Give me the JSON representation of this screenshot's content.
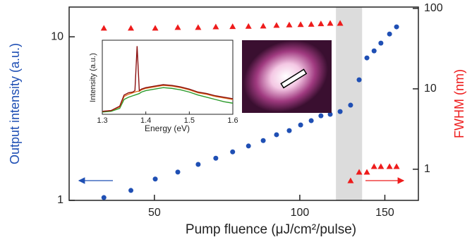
{
  "chart_data": [
    {
      "type": "scatter",
      "xlabel": "Pump fluence (μJ/cm²/pulse)",
      "ylabel": "Output intensity (a.u.)",
      "y2label": "FWHM (nm)",
      "xscale": "log",
      "yscale": "log",
      "y2scale": "log",
      "xlim": [
        33.3,
        176
      ],
      "ylim": [
        1,
        15.2
      ],
      "y2lim": [
        0.41,
        104
      ],
      "xticks": [
        50,
        100,
        150
      ],
      "yticks": [
        1,
        10
      ],
      "y2ticks": [
        1,
        10,
        100
      ],
      "shaded_region": [
        118.8,
        134.6
      ],
      "x": [
        39.3,
        44.7,
        50.2,
        55.9,
        61.6,
        67.0,
        72.6,
        78.3,
        84.0,
        89.5,
        95.1,
        100.4,
        105.6,
        110.6,
        115.6,
        121.2,
        127.4,
        132.7,
        137.7,
        142.5,
        147.2,
        153.4,
        158.6
      ],
      "series": [
        {
          "color": "#1f4fb4",
          "marker": "circle",
          "values": [
            1.04,
            1.15,
            1.35,
            1.49,
            1.66,
            1.81,
            1.98,
            2.15,
            2.32,
            2.52,
            2.67,
            2.89,
            3.07,
            3.29,
            3.36,
            3.49,
            3.82,
            5.46,
            7.43,
            8.2,
            9.15,
            10.4,
            11.5
          ]
        },
        {
          "color": "#ee1c1c",
          "marker": "triangle",
          "axis": "y2",
          "values": [
            56.8,
            56.8,
            56.8,
            58.0,
            58.0,
            59.0,
            59.5,
            60.0,
            60.5,
            61.6,
            62.5,
            63.0,
            63.5,
            64.5,
            65.4,
            65.4,
            0.72,
            0.92,
            0.92,
            1.08,
            1.08,
            1.08,
            1.08
          ]
        }
      ]
    },
    {
      "type": "line",
      "xlabel": "Energy (eV)",
      "ylabel": "Intensity (a.u.)",
      "xlim": [
        1.3,
        1.6
      ],
      "ylim": [
        0,
        1
      ],
      "xticks": [
        1.3,
        1.4,
        1.5,
        1.6
      ],
      "x": [
        1.3,
        1.32,
        1.34,
        1.35,
        1.36,
        1.37,
        1.375,
        1.38,
        1.385,
        1.39,
        1.4,
        1.42,
        1.44,
        1.46,
        1.48,
        1.5,
        1.52,
        1.54,
        1.56,
        1.58,
        1.6
      ],
      "series": [
        {
          "color": "#2a9a2a",
          "values": [
            0.03,
            0.04,
            0.08,
            0.2,
            0.23,
            0.25,
            0.26,
            0.27,
            0.28,
            0.3,
            0.32,
            0.34,
            0.36,
            0.35,
            0.33,
            0.3,
            0.26,
            0.23,
            0.2,
            0.17,
            0.15
          ]
        },
        {
          "color": "#e07020",
          "values": [
            0.04,
            0.05,
            0.1,
            0.24,
            0.27,
            0.29,
            0.3,
            0.31,
            0.31,
            0.33,
            0.35,
            0.37,
            0.39,
            0.38,
            0.36,
            0.33,
            0.29,
            0.27,
            0.24,
            0.22,
            0.2
          ]
        },
        {
          "color": "#8b1010",
          "values": [
            0.04,
            0.05,
            0.11,
            0.26,
            0.29,
            0.3,
            0.32,
            0.92,
            0.32,
            0.34,
            0.36,
            0.38,
            0.4,
            0.39,
            0.37,
            0.34,
            0.3,
            0.28,
            0.25,
            0.23,
            0.21
          ]
        }
      ]
    }
  ]
}
